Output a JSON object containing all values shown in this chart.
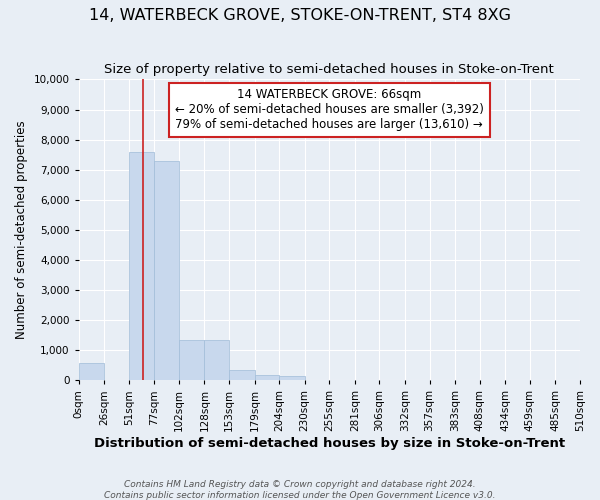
{
  "title": "14, WATERBECK GROVE, STOKE-ON-TRENT, ST4 8XG",
  "subtitle": "Size of property relative to semi-detached houses in Stoke-on-Trent",
  "xlabel": "Distribution of semi-detached houses by size in Stoke-on-Trent",
  "ylabel": "Number of semi-detached properties",
  "footnote": "Contains HM Land Registry data © Crown copyright and database right 2024.\nContains public sector information licensed under the Open Government Licence v3.0.",
  "annotation_line1": "14 WATERBECK GROVE: 66sqm",
  "annotation_line2": "← 20% of semi-detached houses are smaller (3,392)",
  "annotation_line3": "79% of semi-detached houses are larger (13,610) →",
  "bin_edges": [
    0,
    26,
    51,
    77,
    102,
    128,
    153,
    179,
    204,
    230,
    255,
    281,
    306,
    332,
    357,
    383,
    408,
    434,
    459,
    485,
    510
  ],
  "bin_labels": [
    "0sqm",
    "26sqm",
    "51sqm",
    "77sqm",
    "102sqm",
    "128sqm",
    "153sqm",
    "179sqm",
    "204sqm",
    "230sqm",
    "255sqm",
    "281sqm",
    "306sqm",
    "332sqm",
    "357sqm",
    "383sqm",
    "408sqm",
    "434sqm",
    "459sqm",
    "485sqm",
    "510sqm"
  ],
  "bar_heights": [
    560,
    0,
    7600,
    7300,
    1350,
    1350,
    340,
    170,
    130,
    0,
    0,
    0,
    0,
    0,
    0,
    0,
    0,
    0,
    0,
    0
  ],
  "bar_color": "#c8d8ed",
  "bar_edgecolor": "#a0bcd8",
  "vline_x": 66,
  "vline_color": "#cc2222",
  "box_facecolor": "white",
  "box_edgecolor": "#cc2222",
  "ylim": [
    0,
    10000
  ],
  "yticks": [
    0,
    1000,
    2000,
    3000,
    4000,
    5000,
    6000,
    7000,
    8000,
    9000,
    10000
  ],
  "background_color": "#e8eef5",
  "grid_color": "white",
  "title_fontsize": 11.5,
  "subtitle_fontsize": 9.5,
  "xlabel_fontsize": 9.5,
  "ylabel_fontsize": 8.5,
  "tick_fontsize": 7.5,
  "annot_fontsize": 8.5,
  "footnote_fontsize": 6.5
}
